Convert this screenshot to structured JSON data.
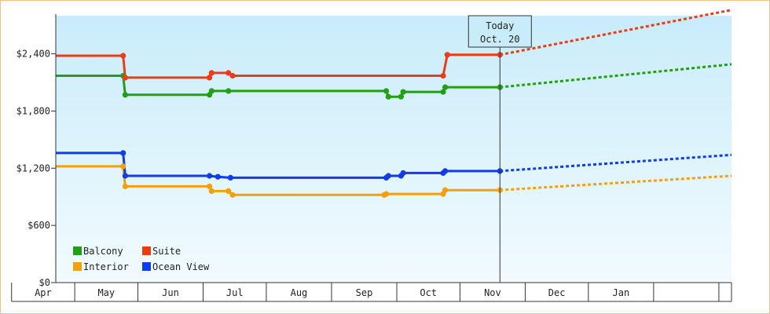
{
  "chart_data": {
    "type": "line",
    "title": "",
    "xlabel": "",
    "ylabel": "",
    "x_axis": {
      "type": "date",
      "range": [
        "2020-03-23",
        "2021-02-07"
      ],
      "month_labels": [
        "Apr",
        "May",
        "Jun",
        "Jul",
        "Aug",
        "Sep",
        "Oct",
        "Nov",
        "Dec",
        "Jan"
      ]
    },
    "y_axis": {
      "range": [
        0,
        2800
      ],
      "ticks": [
        0,
        600,
        1200,
        1800,
        2400
      ],
      "tick_labels": [
        "$0",
        "$600",
        "$1,200",
        "$1,800",
        "$2,400"
      ]
    },
    "grid": false,
    "legend": {
      "placement": "bottom-left",
      "columns": 2
    },
    "today_marker": {
      "date": "2020-10-20",
      "line1": "Today",
      "line2": "Oct. 20"
    },
    "series": [
      {
        "name": "Balcony",
        "color": "#22a015",
        "history": [
          [
            "2020-03-23",
            2170
          ],
          [
            "2020-04-24",
            2170
          ],
          [
            "2020-04-25",
            1970
          ],
          [
            "2020-06-04",
            1970
          ],
          [
            "2020-06-05",
            2010
          ],
          [
            "2020-06-13",
            2010
          ],
          [
            "2020-08-27",
            2010
          ],
          [
            "2020-08-28",
            1950
          ],
          [
            "2020-09-03",
            1950
          ],
          [
            "2020-09-04",
            2000
          ],
          [
            "2020-09-23",
            2000
          ],
          [
            "2020-09-24",
            2050
          ],
          [
            "2020-10-20",
            2050
          ]
        ],
        "forecast": [
          [
            "2020-10-20",
            2050
          ],
          [
            "2021-02-07",
            2290
          ]
        ]
      },
      {
        "name": "Suite",
        "color": "#ee3a15",
        "history": [
          [
            "2020-03-23",
            2380
          ],
          [
            "2020-04-24",
            2380
          ],
          [
            "2020-04-25",
            2150
          ],
          [
            "2020-06-04",
            2150
          ],
          [
            "2020-06-05",
            2200
          ],
          [
            "2020-06-13",
            2200
          ],
          [
            "2020-06-15",
            2170
          ],
          [
            "2020-09-23",
            2170
          ],
          [
            "2020-09-25",
            2390
          ],
          [
            "2020-10-20",
            2390
          ]
        ],
        "forecast": [
          [
            "2020-10-20",
            2390
          ],
          [
            "2021-02-07",
            2860
          ]
        ]
      },
      {
        "name": "Interior",
        "color": "#f2a10d",
        "history": [
          [
            "2020-03-23",
            1220
          ],
          [
            "2020-04-24",
            1220
          ],
          [
            "2020-04-25",
            1010
          ],
          [
            "2020-06-04",
            1010
          ],
          [
            "2020-06-05",
            960
          ],
          [
            "2020-06-13",
            960
          ],
          [
            "2020-06-15",
            920
          ],
          [
            "2020-08-26",
            920
          ],
          [
            "2020-08-27",
            930
          ],
          [
            "2020-09-23",
            930
          ],
          [
            "2020-09-24",
            970
          ],
          [
            "2020-10-20",
            970
          ]
        ],
        "forecast": [
          [
            "2020-10-20",
            970
          ],
          [
            "2021-02-07",
            1120
          ]
        ]
      },
      {
        "name": "Ocean View",
        "color": "#0f3cec",
        "history": [
          [
            "2020-03-23",
            1360
          ],
          [
            "2020-04-24",
            1360
          ],
          [
            "2020-04-25",
            1120
          ],
          [
            "2020-06-04",
            1120
          ],
          [
            "2020-06-08",
            1110
          ],
          [
            "2020-06-14",
            1100
          ],
          [
            "2020-08-27",
            1100
          ],
          [
            "2020-08-28",
            1120
          ],
          [
            "2020-09-03",
            1120
          ],
          [
            "2020-09-04",
            1150
          ],
          [
            "2020-09-23",
            1150
          ],
          [
            "2020-09-24",
            1170
          ],
          [
            "2020-10-20",
            1170
          ]
        ],
        "forecast": [
          [
            "2020-10-20",
            1170
          ],
          [
            "2021-02-07",
            1340
          ]
        ]
      }
    ]
  }
}
